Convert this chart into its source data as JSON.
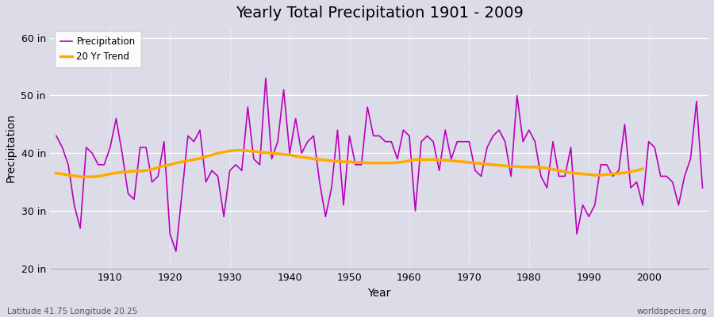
{
  "title": "Yearly Total Precipitation 1901 - 2009",
  "xlabel": "Year",
  "ylabel": "Precipitation",
  "bottom_left_label": "Latitude 41.75 Longitude 20.25",
  "bottom_right_label": "worldspecies.org",
  "ylim": [
    20,
    62
  ],
  "yticks": [
    20,
    30,
    40,
    50,
    60
  ],
  "ytick_labels": [
    "20 in",
    "30 in",
    "40 in",
    "50 in",
    "60 in"
  ],
  "bg_color": "#dcdce8",
  "grid_color": "#ffffff",
  "precip_color": "#bb00bb",
  "trend_color": "#ffaa00",
  "years": [
    1901,
    1902,
    1903,
    1904,
    1905,
    1906,
    1907,
    1908,
    1909,
    1910,
    1911,
    1912,
    1913,
    1914,
    1915,
    1916,
    1917,
    1918,
    1919,
    1920,
    1921,
    1922,
    1923,
    1924,
    1925,
    1926,
    1927,
    1928,
    1929,
    1930,
    1931,
    1932,
    1933,
    1934,
    1935,
    1936,
    1937,
    1938,
    1939,
    1940,
    1941,
    1942,
    1943,
    1944,
    1945,
    1946,
    1947,
    1948,
    1949,
    1950,
    1951,
    1952,
    1953,
    1954,
    1955,
    1956,
    1957,
    1958,
    1959,
    1960,
    1961,
    1962,
    1963,
    1964,
    1965,
    1966,
    1967,
    1968,
    1969,
    1970,
    1971,
    1972,
    1973,
    1974,
    1975,
    1976,
    1977,
    1978,
    1979,
    1980,
    1981,
    1982,
    1983,
    1984,
    1985,
    1986,
    1987,
    1988,
    1989,
    1990,
    1991,
    1992,
    1993,
    1994,
    1995,
    1996,
    1997,
    1998,
    1999,
    2000,
    2001,
    2002,
    2003,
    2004,
    2005,
    2006,
    2007,
    2008,
    2009
  ],
  "precip": [
    43,
    41,
    38,
    31,
    27,
    41,
    40,
    38,
    38,
    41,
    46,
    40,
    33,
    32,
    41,
    41,
    35,
    36,
    42,
    26,
    23,
    33,
    43,
    42,
    44,
    35,
    37,
    36,
    29,
    37,
    38,
    37,
    48,
    39,
    38,
    53,
    39,
    42,
    51,
    40,
    46,
    40,
    42,
    43,
    35,
    29,
    34,
    44,
    31,
    43,
    38,
    38,
    48,
    43,
    43,
    42,
    42,
    39,
    44,
    43,
    30,
    42,
    43,
    42,
    37,
    44,
    39,
    42,
    42,
    42,
    37,
    36,
    41,
    43,
    44,
    42,
    36,
    50,
    42,
    44,
    42,
    36,
    34,
    42,
    36,
    36,
    41,
    26,
    31,
    29,
    31,
    38,
    38,
    36,
    37,
    45,
    34,
    35,
    31,
    42,
    41,
    36,
    36,
    35,
    31,
    36,
    39,
    49,
    34
  ],
  "trend": [
    36.5,
    36.4,
    36.2,
    36.1,
    35.9,
    35.9,
    35.9,
    36.0,
    36.2,
    36.4,
    36.6,
    36.7,
    36.8,
    36.9,
    36.9,
    37.0,
    37.2,
    37.5,
    37.8,
    38.0,
    38.3,
    38.5,
    38.7,
    38.9,
    39.1,
    39.4,
    39.7,
    40.0,
    40.2,
    40.4,
    40.5,
    40.5,
    40.4,
    40.3,
    40.2,
    40.1,
    40.0,
    39.9,
    39.8,
    39.7,
    39.5,
    39.3,
    39.2,
    39.0,
    38.9,
    38.8,
    38.7,
    38.6,
    38.5,
    38.5,
    38.4,
    38.4,
    38.3,
    38.3,
    38.3,
    38.3,
    38.3,
    38.4,
    38.5,
    38.7,
    38.9,
    38.9,
    38.9,
    38.9,
    38.8,
    38.8,
    38.7,
    38.6,
    38.5,
    38.4,
    38.3,
    38.2,
    38.1,
    38.0,
    37.9,
    37.8,
    37.7,
    37.7,
    37.6,
    37.6,
    37.6,
    37.5,
    37.4,
    37.2,
    37.0,
    36.8,
    36.6,
    36.5,
    36.4,
    36.3,
    36.2,
    36.2,
    36.3,
    36.4,
    36.5,
    36.6,
    36.8,
    37.0,
    37.3
  ]
}
